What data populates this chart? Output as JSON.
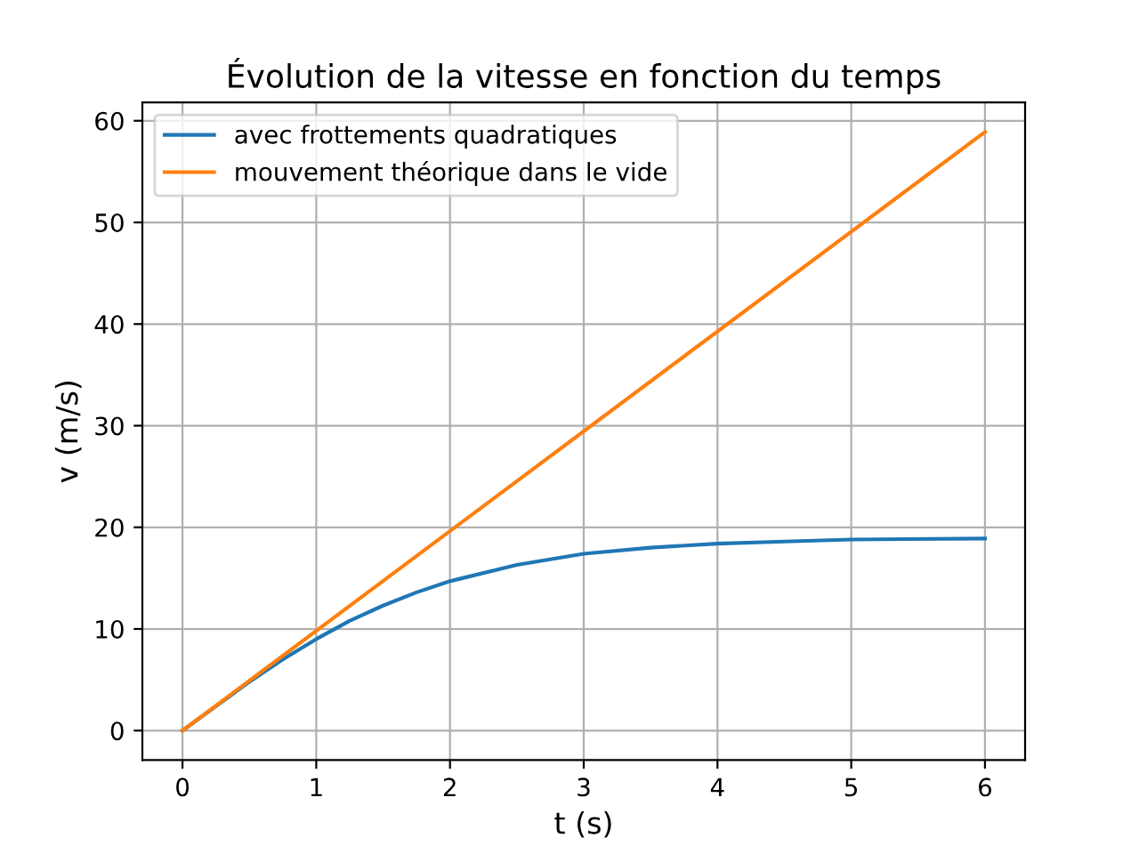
{
  "chart_data": {
    "type": "line",
    "title": "Évolution de la vitesse en fonction du temps",
    "xlabel": "t (s)",
    "ylabel": "v (m/s)",
    "series": [
      {
        "name": "avec frottements quadratiques",
        "color": "#1f77b4",
        "x": [
          0,
          0.25,
          0.5,
          0.75,
          1,
          1.25,
          1.5,
          1.75,
          2,
          2.5,
          3,
          3.5,
          4,
          4.5,
          5,
          6
        ],
        "values": [
          0,
          2.4,
          4.8,
          7.0,
          9.0,
          10.8,
          12.3,
          13.6,
          14.7,
          16.3,
          17.4,
          18.0,
          18.4,
          18.6,
          18.8,
          18.9
        ]
      },
      {
        "name": "mouvement théorique dans le vide",
        "color": "#ff7f0e",
        "x": [
          0,
          6
        ],
        "values": [
          0,
          58.9
        ]
      }
    ],
    "xlim": [
      -0.3,
      6.3
    ],
    "ylim": [
      -2.9,
      61.8
    ],
    "xticks": [
      0,
      1,
      2,
      3,
      4,
      5,
      6
    ],
    "yticks": [
      0,
      10,
      20,
      30,
      40,
      50,
      60
    ],
    "grid": true,
    "legend": "top left"
  }
}
